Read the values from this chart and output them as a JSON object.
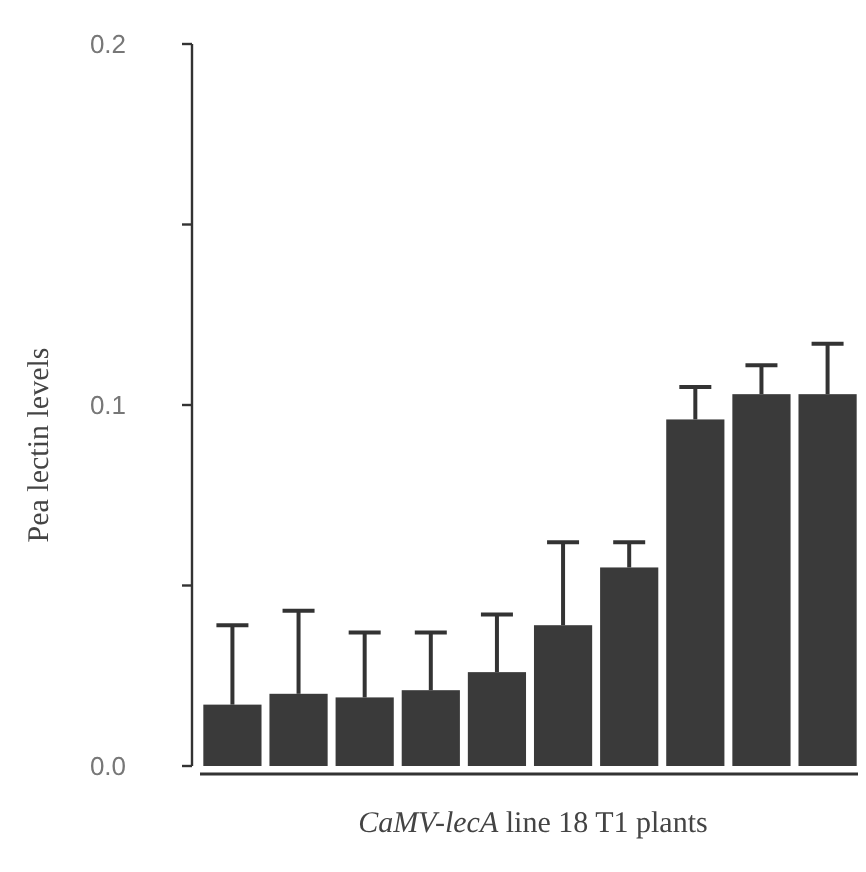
{
  "chart_data": {
    "type": "bar",
    "xlabel": "CaMV-lecA line 18 T1 plants",
    "ylabel": "Pea lectin levels",
    "categories": [
      null,
      null,
      null,
      null,
      null,
      null,
      null,
      null,
      null,
      null
    ],
    "values": [
      0.017,
      0.02,
      0.019,
      0.021,
      0.026,
      0.039,
      0.055,
      0.096,
      0.103,
      0.103
    ],
    "errors": [
      [
        0.017,
        0.039
      ],
      [
        0.02,
        0.043
      ],
      [
        0.019,
        0.037
      ],
      [
        0.021,
        0.037
      ],
      [
        0.026,
        0.042
      ],
      [
        0.039,
        0.062
      ],
      [
        0.055,
        0.062
      ],
      [
        0.096,
        0.105
      ],
      [
        0.103,
        0.111
      ],
      [
        0.103,
        0.117
      ]
    ],
    "color": "#3a3a3a",
    "ylim": [
      0,
      0.2
    ],
    "yticks": [
      {
        "value": 0,
        "label": "0.0"
      },
      {
        "value": 0.05,
        "label": null
      },
      {
        "value": 0.1,
        "label": "0.1"
      },
      {
        "value": 0.15,
        "label": null
      },
      {
        "value": 0.2,
        "label": "0.2"
      }
    ],
    "grid": false
  }
}
